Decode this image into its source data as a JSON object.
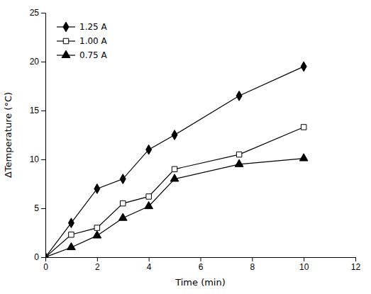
{
  "chart_data": {
    "type": "line",
    "xlabel": "Time (min)",
    "ylabel": "ΔTemperature (°C)",
    "x": [
      0,
      1,
      2,
      3,
      4,
      5,
      7.5,
      10
    ],
    "series": [
      {
        "name": "1.25 A",
        "color": "black",
        "marker": "diamond",
        "line_style": "solid",
        "values": [
          0,
          3.5,
          7.0,
          8.0,
          11.0,
          12.5,
          16.5,
          19.5
        ]
      },
      {
        "name": "1.00 A",
        "color": "black",
        "marker": "square-open",
        "line_style": "solid",
        "values": [
          0,
          2.3,
          3.0,
          5.5,
          6.2,
          9.0,
          10.5,
          13.3
        ]
      },
      {
        "name": "0.75 A",
        "color": "black",
        "marker": "triangle",
        "line_style": "solid",
        "values": [
          0,
          1.0,
          2.2,
          4.0,
          5.2,
          8.0,
          9.5,
          10.1
        ]
      }
    ],
    "xlim": [
      0,
      12
    ],
    "ylim": [
      0,
      25
    ],
    "xticks": [
      0,
      2,
      4,
      6,
      8,
      10,
      12
    ],
    "yticks": [
      0,
      5,
      10,
      15,
      20,
      25
    ],
    "grid": false,
    "legend": "upper left"
  }
}
